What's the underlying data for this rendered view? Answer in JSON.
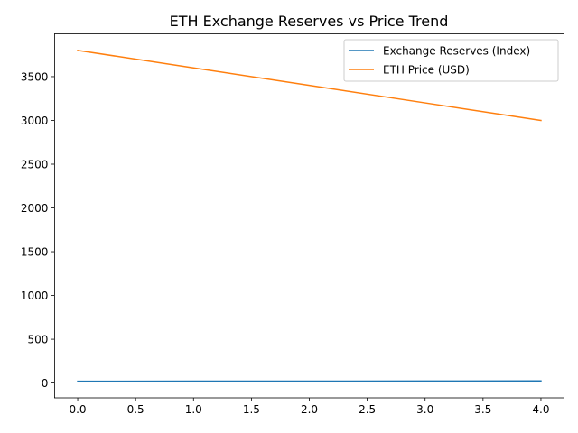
{
  "chart_data": {
    "type": "line",
    "title": "ETH Exchange Reserves vs Price Trend",
    "xlabel": "",
    "ylabel": "",
    "x": [
      0,
      1,
      2,
      3,
      4
    ],
    "xlim": [
      -0.2,
      4.2
    ],
    "ylim": [
      -169,
      3989
    ],
    "xticks": [
      0.0,
      0.5,
      1.0,
      1.5,
      2.0,
      2.5,
      3.0,
      3.5,
      4.0
    ],
    "xtick_labels": [
      "0.0",
      "0.5",
      "1.0",
      "1.5",
      "2.0",
      "2.5",
      "3.0",
      "3.5",
      "4.0"
    ],
    "yticks": [
      0,
      500,
      1000,
      1500,
      2000,
      2500,
      3000,
      3500
    ],
    "ytick_labels": [
      "0",
      "500",
      "1000",
      "1500",
      "2000",
      "2500",
      "3000",
      "3500"
    ],
    "grid": false,
    "legend_position": "top-right",
    "series": [
      {
        "name": "Exchange Reserves (Index)",
        "color": "#1f77b4",
        "values": [
          20,
          21,
          22,
          23,
          24
        ]
      },
      {
        "name": "ETH Price (USD)",
        "color": "#ff7f0e",
        "values": [
          3800,
          3600,
          3400,
          3200,
          3000
        ]
      }
    ]
  }
}
